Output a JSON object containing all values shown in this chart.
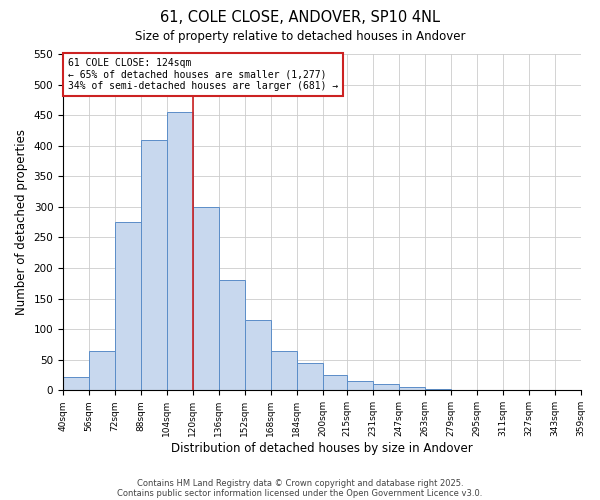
{
  "title": "61, COLE CLOSE, ANDOVER, SP10 4NL",
  "subtitle": "Size of property relative to detached houses in Andover",
  "xlabel": "Distribution of detached houses by size in Andover",
  "ylabel": "Number of detached properties",
  "bar_color": "#c8d8ee",
  "bar_edge_color": "#5b8dc8",
  "bins": [
    40,
    56,
    72,
    88,
    104,
    120,
    136,
    152,
    168,
    184,
    200,
    215,
    231,
    247,
    263,
    279,
    295,
    311,
    327,
    343,
    359
  ],
  "bin_labels": [
    "40sqm",
    "56sqm",
    "72sqm",
    "88sqm",
    "104sqm",
    "120sqm",
    "136sqm",
    "152sqm",
    "168sqm",
    "184sqm",
    "200sqm",
    "215sqm",
    "231sqm",
    "247sqm",
    "263sqm",
    "279sqm",
    "295sqm",
    "311sqm",
    "327sqm",
    "343sqm",
    "359sqm"
  ],
  "counts": [
    22,
    65,
    275,
    410,
    455,
    300,
    180,
    115,
    65,
    45,
    25,
    15,
    10,
    5,
    2,
    1,
    1,
    1,
    1,
    1
  ],
  "ylim": [
    0,
    550
  ],
  "yticks": [
    0,
    50,
    100,
    150,
    200,
    250,
    300,
    350,
    400,
    450,
    500,
    550
  ],
  "vline_x": 120,
  "vline_color": "#cc2222",
  "annotation_text": "61 COLE CLOSE: 124sqm\n← 65% of detached houses are smaller (1,277)\n34% of semi-detached houses are larger (681) →",
  "annotation_box_color": "#ffffff",
  "annotation_box_edge_color": "#cc2222",
  "footnote1": "Contains HM Land Registry data © Crown copyright and database right 2025.",
  "footnote2": "Contains public sector information licensed under the Open Government Licence v3.0.",
  "bg_color": "#ffffff",
  "grid_color": "#cccccc",
  "figsize": [
    6.0,
    5.0
  ],
  "dpi": 100
}
